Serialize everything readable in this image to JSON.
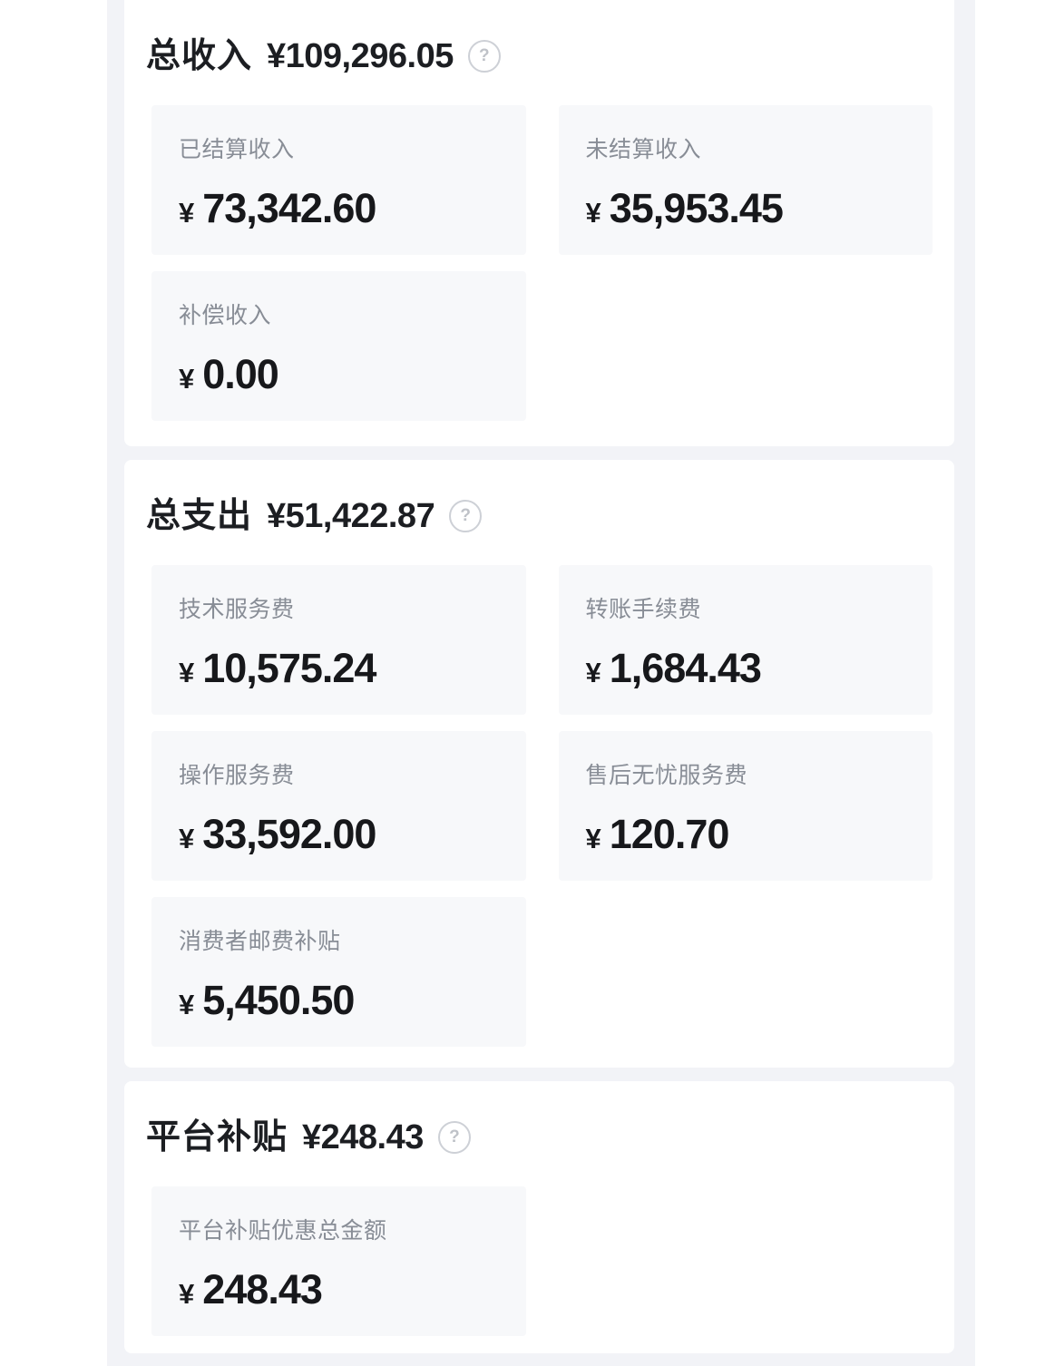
{
  "help_glyph": "?",
  "colors": {
    "page_background": "#f2f3f7",
    "panel_background": "#ffffff",
    "card_background": "#f7f8fa",
    "title_text": "#1c1e22",
    "label_text": "#888d96",
    "value_text": "#17181b",
    "help_icon": "#cdd0d6"
  },
  "sections": [
    {
      "title": "总收入",
      "amount": "¥109,296.05",
      "cards": [
        {
          "label": "已结算收入",
          "currency": "¥",
          "value": "73,342.60"
        },
        {
          "label": "未结算收入",
          "currency": "¥",
          "value": "35,953.45"
        },
        {
          "label": "补偿收入",
          "currency": "¥",
          "value": "0.00"
        }
      ]
    },
    {
      "title": "总支出",
      "amount": "¥51,422.87",
      "cards": [
        {
          "label": "技术服务费",
          "currency": "¥",
          "value": "10,575.24"
        },
        {
          "label": "转账手续费",
          "currency": "¥",
          "value": "1,684.43"
        },
        {
          "label": "操作服务费",
          "currency": "¥",
          "value": "33,592.00"
        },
        {
          "label": "售后无忧服务费",
          "currency": "¥",
          "value": "120.70"
        },
        {
          "label": "消费者邮费补贴",
          "currency": "¥",
          "value": "5,450.50"
        }
      ]
    },
    {
      "title": "平台补贴",
      "amount": "¥248.43",
      "cards": [
        {
          "label": "平台补贴优惠总金额",
          "currency": "¥",
          "value": "248.43"
        }
      ]
    }
  ]
}
